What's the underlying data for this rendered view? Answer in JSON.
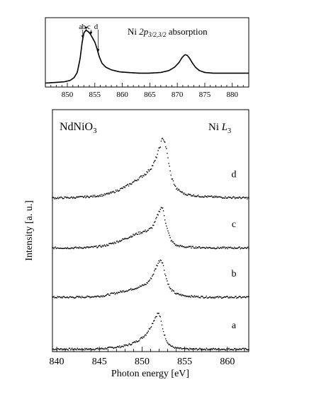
{
  "chart_data": [
    {
      "type": "line",
      "title": "Ni 2p3/2,3/2 absorption",
      "title_parts": {
        "prefix": "Ni ",
        "main": "2p",
        "sub": "3/2,3/2",
        "suffix": "  absorption"
      },
      "xlim": [
        846,
        883
      ],
      "ylim": [
        0,
        1.05
      ],
      "x_ticks": [
        850,
        855,
        860,
        865,
        870,
        875,
        880
      ],
      "x_tick_labels": [
        "850",
        "855",
        "860",
        "865",
        "870",
        "875",
        "880"
      ],
      "grid": false,
      "series": [
        {
          "x": [
            846,
            848,
            849.5,
            850.5,
            851.2,
            851.8,
            852.3,
            852.7,
            853.0,
            853.4,
            853.8,
            854.2,
            854.6,
            855.0,
            855.4,
            855.8,
            856.3,
            857.0,
            858.0,
            859.5,
            861.0,
            863.0,
            865.0,
            867.0,
            868.5,
            869.5,
            870.3,
            870.9,
            871.4,
            871.8,
            872.2,
            872.7,
            873.3,
            874.0,
            875.0,
            876.5,
            878.0,
            880.0,
            882.0,
            883.0
          ],
          "y": [
            0.06,
            0.07,
            0.08,
            0.1,
            0.14,
            0.22,
            0.42,
            0.68,
            0.82,
            0.86,
            0.84,
            0.8,
            0.74,
            0.68,
            0.58,
            0.46,
            0.36,
            0.3,
            0.26,
            0.23,
            0.22,
            0.21,
            0.21,
            0.22,
            0.25,
            0.3,
            0.37,
            0.45,
            0.49,
            0.48,
            0.44,
            0.37,
            0.3,
            0.25,
            0.22,
            0.21,
            0.21,
            0.21,
            0.21,
            0.21
          ]
        }
      ],
      "markers": [
        {
          "label": "a",
          "x": 852.8
        },
        {
          "label": "b",
          "x": 853.4
        },
        {
          "label": "c",
          "x": 854.3
        },
        {
          "label": "d",
          "x": 855.6
        }
      ]
    },
    {
      "type": "scatter",
      "label": "NdNiO3",
      "label_parts": {
        "main": "NdNiO",
        "sub": "3"
      },
      "edge_label": "Ni L3",
      "edge_label_parts": {
        "prefix": "Ni ",
        "main": "L",
        "sub": "3"
      },
      "xlabel": "Photon energy [eV]",
      "ylabel": "Intensity [a. u.]",
      "xlim": [
        839.5,
        862.5
      ],
      "ylim": [
        0,
        4.9
      ],
      "x_ticks": [
        840,
        845,
        850,
        855,
        860
      ],
      "x_tick_labels": [
        "840",
        "845",
        "850",
        "855",
        "860"
      ],
      "grid": false,
      "series": [
        {
          "name": "a",
          "offset": 0,
          "x": [
            839.5,
            842,
            844,
            845.5,
            846.5,
            847.5,
            848.5,
            849.3,
            850,
            850.5,
            851,
            851.4,
            851.7,
            851.9,
            852.1,
            852.3,
            852.6,
            853,
            853.5,
            854,
            855,
            856.5,
            858.5,
            860.5,
            862.5
          ],
          "y": [
            0.05,
            0.05,
            0.05,
            0.06,
            0.08,
            0.1,
            0.14,
            0.2,
            0.28,
            0.36,
            0.5,
            0.64,
            0.74,
            0.78,
            0.72,
            0.55,
            0.35,
            0.18,
            0.1,
            0.07,
            0.05,
            0.05,
            0.05,
            0.05,
            0.05
          ]
        },
        {
          "name": "b",
          "offset": 1.05,
          "x": [
            839.5,
            842,
            844,
            845.5,
            846.5,
            847.5,
            848.5,
            849.3,
            850,
            850.5,
            851,
            851.4,
            851.7,
            852,
            852.2,
            852.4,
            852.6,
            852.9,
            853.3,
            854,
            855,
            856.5,
            858.5,
            860.5,
            862.5
          ],
          "y": [
            0.05,
            0.05,
            0.06,
            0.08,
            0.12,
            0.16,
            0.2,
            0.24,
            0.28,
            0.32,
            0.42,
            0.55,
            0.68,
            0.78,
            0.82,
            0.76,
            0.6,
            0.4,
            0.22,
            0.12,
            0.08,
            0.06,
            0.05,
            0.05,
            0.05
          ]
        },
        {
          "name": "c",
          "offset": 2.05,
          "x": [
            839.5,
            842,
            844,
            845.5,
            846.5,
            847.5,
            848.5,
            849.3,
            850,
            850.6,
            851.1,
            851.5,
            851.8,
            852.1,
            852.3,
            852.5,
            852.7,
            853,
            853.4,
            854,
            855,
            856.5,
            858.5,
            860.5,
            862.5
          ],
          "y": [
            0.05,
            0.05,
            0.06,
            0.09,
            0.14,
            0.2,
            0.27,
            0.33,
            0.37,
            0.4,
            0.45,
            0.56,
            0.7,
            0.83,
            0.88,
            0.8,
            0.62,
            0.4,
            0.2,
            0.1,
            0.07,
            0.06,
            0.05,
            0.05,
            0.05
          ]
        },
        {
          "name": "d",
          "offset": 3.05,
          "x": [
            839.5,
            842,
            844,
            845.5,
            846.5,
            847.5,
            848.5,
            849.3,
            850,
            850.6,
            851.1,
            851.5,
            851.8,
            852.1,
            852.3,
            852.5,
            852.7,
            853,
            853.4,
            854,
            855,
            856.5,
            858.5,
            860.5,
            862.5
          ],
          "y": [
            0.06,
            0.07,
            0.09,
            0.12,
            0.17,
            0.24,
            0.33,
            0.42,
            0.5,
            0.58,
            0.68,
            0.8,
            0.95,
            1.1,
            1.22,
            1.27,
            1.18,
            0.9,
            0.5,
            0.25,
            0.14,
            0.1,
            0.08,
            0.07,
            0.06
          ]
        }
      ]
    }
  ]
}
